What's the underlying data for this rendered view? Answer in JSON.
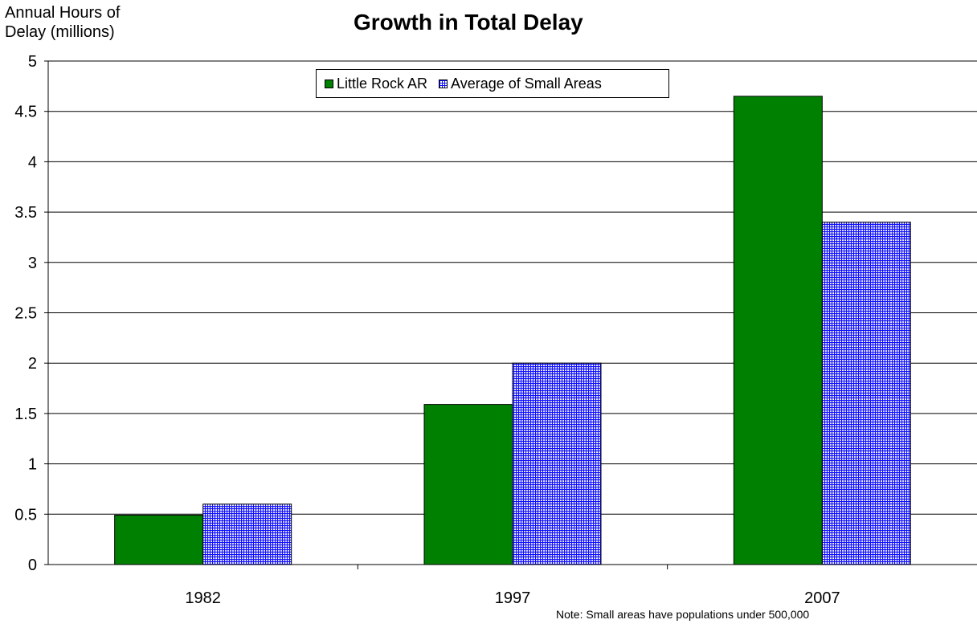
{
  "chart_data": {
    "type": "bar",
    "title": "Growth in Total Delay",
    "ylabel_lines": [
      "Annual Hours of",
      "Delay (millions)"
    ],
    "xlabel": "",
    "categories": [
      "1982",
      "1997",
      "2007"
    ],
    "series": [
      {
        "name": "Little Rock AR",
        "values": [
          0.49,
          1.59,
          4.65
        ],
        "color": "#008000",
        "pattern": "solid"
      },
      {
        "name": "Average of Small Areas",
        "values": [
          0.6,
          2.0,
          3.4
        ],
        "color": "#1010ff",
        "pattern": "checkered"
      }
    ],
    "ylim": [
      0,
      5
    ],
    "yticks": [
      "0",
      "0.5",
      "1",
      "1.5",
      "2",
      "2.5",
      "3",
      "3.5",
      "4",
      "4.5",
      "5"
    ],
    "grid": true,
    "legend_position": "top-center",
    "note": "Note: Small areas have populations under 500,000"
  }
}
